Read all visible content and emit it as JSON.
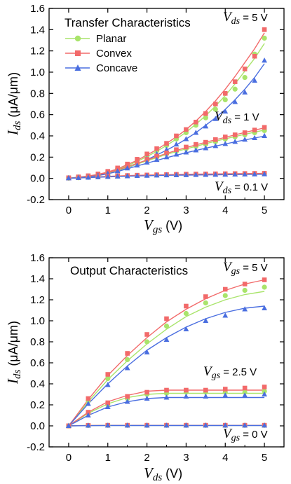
{
  "chart_data": [
    {
      "type": "scatter",
      "title": "Transfer Characteristics",
      "xlabel_main": "V",
      "xlabel_sub": "gs",
      "xlabel_unit": " (V)",
      "ylabel_main": "I",
      "ylabel_sub": "ds",
      "ylabel_unit": " (μA/μm)",
      "xlim": [
        -0.5,
        5.5
      ],
      "ylim": [
        -0.2,
        1.6
      ],
      "xticks": [
        0,
        1,
        2,
        3,
        4,
        5
      ],
      "yticks": [
        -0.2,
        0.0,
        0.2,
        0.4,
        0.6,
        0.8,
        1.0,
        1.2,
        1.4,
        1.6
      ],
      "legend": {
        "position": "top-left",
        "entries": [
          "Planar",
          "Convex",
          "Concave"
        ]
      },
      "annotations": [
        {
          "main": "V",
          "sub": "ds",
          "rest": " = 5 V"
        },
        {
          "main": "V",
          "sub": "ds",
          "rest": " = 1 V"
        },
        {
          "main": "V",
          "sub": "ds",
          "rest": " = 0.1 V"
        }
      ],
      "x": [
        0,
        0.25,
        0.5,
        0.75,
        1.0,
        1.25,
        1.5,
        1.75,
        2.0,
        2.25,
        2.5,
        2.75,
        3.0,
        3.25,
        3.5,
        3.75,
        4.0,
        4.25,
        4.5,
        4.75,
        5.0
      ],
      "series": [
        {
          "name": "Planar",
          "group": "Vds = 5 V",
          "color": "#a9e46b",
          "marker": "circle",
          "points": [
            0.005,
            0.012,
            0.022,
            0.038,
            0.06,
            0.09,
            0.125,
            0.165,
            0.21,
            0.26,
            0.31,
            0.37,
            0.43,
            0.5,
            0.57,
            0.65,
            0.74,
            0.84,
            0.95,
            1.17,
            1.32
          ],
          "fit": [
            0.002,
            0.01,
            0.02,
            0.035,
            0.055,
            0.085,
            0.12,
            0.16,
            0.205,
            0.255,
            0.31,
            0.37,
            0.435,
            0.51,
            0.59,
            0.68,
            0.78,
            0.89,
            1.01,
            1.13,
            1.27
          ]
        },
        {
          "name": "Convex",
          "group": "Vds = 5 V",
          "color": "#f26a6a",
          "marker": "square",
          "points": [
            0.006,
            0.014,
            0.025,
            0.042,
            0.066,
            0.098,
            0.135,
            0.18,
            0.23,
            0.28,
            0.33,
            0.4,
            0.46,
            0.53,
            0.61,
            0.7,
            0.8,
            0.91,
            1.03,
            1.15,
            1.4
          ],
          "fit": [
            0.002,
            0.011,
            0.022,
            0.038,
            0.06,
            0.09,
            0.13,
            0.17,
            0.22,
            0.27,
            0.33,
            0.39,
            0.46,
            0.54,
            0.63,
            0.73,
            0.84,
            0.96,
            1.09,
            1.22,
            1.37
          ]
        },
        {
          "name": "Concave",
          "group": "Vds = 5 V",
          "color": "#4a6ee0",
          "marker": "triangle",
          "points": [
            0.004,
            0.01,
            0.019,
            0.032,
            0.052,
            0.078,
            0.11,
            0.145,
            0.185,
            0.23,
            0.27,
            0.32,
            0.37,
            0.43,
            0.49,
            0.56,
            0.63,
            0.72,
            0.81,
            0.92,
            1.11
          ],
          "fit": [
            0.002,
            0.009,
            0.018,
            0.031,
            0.048,
            0.072,
            0.1,
            0.135,
            0.175,
            0.22,
            0.265,
            0.315,
            0.37,
            0.43,
            0.5,
            0.57,
            0.65,
            0.74,
            0.84,
            0.95,
            1.08
          ]
        },
        {
          "name": "Planar",
          "group": "Vds = 1 V",
          "color": "#a9e46b",
          "marker": "circle",
          "points": [
            0.004,
            0.01,
            0.018,
            0.032,
            0.052,
            0.08,
            0.11,
            0.14,
            0.17,
            0.2,
            0.23,
            0.255,
            0.28,
            0.3,
            0.32,
            0.345,
            0.37,
            0.39,
            0.41,
            0.43,
            0.45
          ],
          "fit": [
            0.002,
            0.009,
            0.018,
            0.03,
            0.05,
            0.075,
            0.105,
            0.135,
            0.165,
            0.195,
            0.225,
            0.252,
            0.278,
            0.302,
            0.326,
            0.35,
            0.372,
            0.394,
            0.415,
            0.435,
            0.455
          ]
        },
        {
          "name": "Convex",
          "group": "Vds = 1 V",
          "color": "#f26a6a",
          "marker": "square",
          "points": [
            0.005,
            0.011,
            0.02,
            0.034,
            0.056,
            0.085,
            0.115,
            0.15,
            0.18,
            0.21,
            0.24,
            0.27,
            0.295,
            0.32,
            0.34,
            0.365,
            0.39,
            0.41,
            0.43,
            0.455,
            0.48
          ],
          "fit": [
            0.002,
            0.01,
            0.019,
            0.032,
            0.053,
            0.08,
            0.11,
            0.142,
            0.173,
            0.204,
            0.235,
            0.263,
            0.29,
            0.315,
            0.34,
            0.364,
            0.387,
            0.41,
            0.432,
            0.454,
            0.475
          ]
        },
        {
          "name": "Concave",
          "group": "Vds = 1 V",
          "color": "#4a6ee0",
          "marker": "triangle",
          "points": [
            0.003,
            0.008,
            0.015,
            0.027,
            0.045,
            0.068,
            0.095,
            0.122,
            0.15,
            0.175,
            0.2,
            0.225,
            0.245,
            0.265,
            0.285,
            0.305,
            0.325,
            0.345,
            0.365,
            0.38,
            0.4
          ],
          "fit": [
            0.002,
            0.008,
            0.015,
            0.026,
            0.043,
            0.065,
            0.09,
            0.117,
            0.143,
            0.169,
            0.194,
            0.218,
            0.241,
            0.263,
            0.284,
            0.304,
            0.324,
            0.343,
            0.362,
            0.38,
            0.398
          ]
        },
        {
          "name": "Planar",
          "group": "Vds = 0.1 V",
          "color": "#a9e46b",
          "marker": "circle",
          "points": [
            0.002,
            0.006,
            0.01,
            0.014,
            0.018,
            0.022,
            0.025,
            0.028,
            0.03,
            0.032,
            0.034,
            0.035,
            0.036,
            0.038,
            0.039,
            0.04,
            0.041,
            0.042,
            0.043,
            0.044,
            0.045
          ],
          "fit": [
            0.001,
            0.005,
            0.009,
            0.013,
            0.017,
            0.021,
            0.024,
            0.027,
            0.029,
            0.031,
            0.033,
            0.034,
            0.036,
            0.037,
            0.038,
            0.039,
            0.04,
            0.041,
            0.042,
            0.043,
            0.044
          ]
        },
        {
          "name": "Convex",
          "group": "Vds = 0.1 V",
          "color": "#f26a6a",
          "marker": "square",
          "points": [
            0.003,
            0.007,
            0.011,
            0.015,
            0.02,
            0.024,
            0.027,
            0.03,
            0.032,
            0.034,
            0.036,
            0.038,
            0.04,
            0.041,
            0.042,
            0.043,
            0.044,
            0.045,
            0.046,
            0.047,
            0.048
          ],
          "fit": [
            0.001,
            0.006,
            0.01,
            0.014,
            0.019,
            0.023,
            0.026,
            0.029,
            0.031,
            0.033,
            0.035,
            0.037,
            0.039,
            0.04,
            0.041,
            0.042,
            0.043,
            0.044,
            0.045,
            0.046,
            0.047
          ]
        },
        {
          "name": "Concave",
          "group": "Vds = 0.1 V",
          "color": "#4a6ee0",
          "marker": "triangle",
          "points": [
            0.002,
            0.005,
            0.008,
            0.012,
            0.015,
            0.018,
            0.021,
            0.024,
            0.026,
            0.028,
            0.03,
            0.031,
            0.032,
            0.033,
            0.034,
            0.035,
            0.036,
            0.037,
            0.038,
            0.039,
            0.04
          ],
          "fit": [
            0.001,
            0.004,
            0.008,
            0.011,
            0.014,
            0.017,
            0.02,
            0.023,
            0.025,
            0.027,
            0.029,
            0.03,
            0.031,
            0.032,
            0.033,
            0.034,
            0.035,
            0.036,
            0.037,
            0.038,
            0.039
          ]
        }
      ]
    },
    {
      "type": "scatter",
      "title": "Output Characteristics",
      "xlabel_main": "V",
      "xlabel_sub": "ds",
      "xlabel_unit": " (V)",
      "ylabel_main": "I",
      "ylabel_sub": "ds",
      "ylabel_unit": " (μA/μm)",
      "xlim": [
        -0.5,
        5.5
      ],
      "ylim": [
        -0.2,
        1.6
      ],
      "xticks": [
        0,
        1,
        2,
        3,
        4,
        5
      ],
      "yticks": [
        -0.2,
        0.0,
        0.2,
        0.4,
        0.6,
        0.8,
        1.0,
        1.2,
        1.4,
        1.6
      ],
      "annotations": [
        {
          "main": "V",
          "sub": "gs",
          "rest": " = 5 V"
        },
        {
          "main": "V",
          "sub": "gs",
          "rest": " = 2.5 V"
        },
        {
          "main": "V",
          "sub": "gs",
          "rest": " = 0 V"
        }
      ],
      "x": [
        0,
        0.5,
        1.0,
        1.5,
        2.0,
        2.5,
        3.0,
        3.5,
        4.0,
        4.5,
        5.0
      ],
      "series": [
        {
          "name": "Planar",
          "group": "Vgs = 5 V",
          "color": "#a9e46b",
          "marker": "circle",
          "points": [
            0.0,
            0.24,
            0.45,
            0.63,
            0.8,
            0.95,
            1.07,
            1.17,
            1.24,
            1.29,
            1.32
          ],
          "fit": [
            0.0,
            0.23,
            0.44,
            0.62,
            0.78,
            0.92,
            1.04,
            1.13,
            1.2,
            1.25,
            1.28
          ]
        },
        {
          "name": "Convex",
          "group": "Vgs = 5 V",
          "color": "#f26a6a",
          "marker": "square",
          "points": [
            0.0,
            0.26,
            0.49,
            0.69,
            0.87,
            1.02,
            1.14,
            1.23,
            1.3,
            1.35,
            1.39
          ],
          "fit": [
            0.0,
            0.25,
            0.48,
            0.67,
            0.84,
            0.99,
            1.11,
            1.21,
            1.29,
            1.35,
            1.39
          ]
        },
        {
          "name": "Concave",
          "group": "Vgs = 5 V",
          "color": "#4a6ee0",
          "marker": "triangle",
          "points": [
            0.0,
            0.21,
            0.39,
            0.55,
            0.7,
            0.82,
            0.92,
            1.0,
            1.05,
            1.11,
            1.12
          ],
          "fit": [
            0.0,
            0.21,
            0.4,
            0.57,
            0.72,
            0.84,
            0.94,
            1.02,
            1.08,
            1.12,
            1.14
          ]
        },
        {
          "name": "Planar",
          "group": "Vgs = 2.5 V",
          "color": "#a9e46b",
          "marker": "circle",
          "points": [
            0.0,
            0.12,
            0.2,
            0.26,
            0.3,
            0.31,
            0.32,
            0.32,
            0.32,
            0.32,
            0.33
          ],
          "fit": [
            0.0,
            0.12,
            0.21,
            0.27,
            0.3,
            0.31,
            0.31,
            0.31,
            0.31,
            0.31,
            0.31
          ]
        },
        {
          "name": "Convex",
          "group": "Vgs = 2.5 V",
          "color": "#f26a6a",
          "marker": "square",
          "points": [
            0.0,
            0.13,
            0.22,
            0.28,
            0.32,
            0.34,
            0.34,
            0.34,
            0.35,
            0.36,
            0.37
          ],
          "fit": [
            0.0,
            0.13,
            0.23,
            0.29,
            0.33,
            0.34,
            0.34,
            0.34,
            0.34,
            0.34,
            0.34
          ]
        },
        {
          "name": "Concave",
          "group": "Vgs = 2.5 V",
          "color": "#4a6ee0",
          "marker": "triangle",
          "points": [
            0.0,
            0.1,
            0.18,
            0.23,
            0.26,
            0.27,
            0.28,
            0.28,
            0.29,
            0.29,
            0.3
          ],
          "fit": [
            0.0,
            0.1,
            0.18,
            0.23,
            0.26,
            0.27,
            0.27,
            0.27,
            0.27,
            0.27,
            0.27
          ]
        },
        {
          "name": "Planar",
          "group": "Vgs = 0 V",
          "color": "#a9e46b",
          "marker": "circle",
          "points": [
            0.0,
            0.004,
            0.005,
            0.005,
            0.005,
            0.005,
            0.005,
            0.005,
            0.005,
            0.005,
            0.005
          ],
          "fit": [
            0.0,
            0.003,
            0.004,
            0.004,
            0.004,
            0.004,
            0.004,
            0.004,
            0.004,
            0.004,
            0.004
          ]
        },
        {
          "name": "Convex",
          "group": "Vgs = 0 V",
          "color": "#f26a6a",
          "marker": "square",
          "points": [
            0.0,
            0.005,
            0.006,
            0.006,
            0.006,
            0.006,
            0.006,
            0.006,
            0.006,
            0.006,
            0.006
          ],
          "fit": [
            0.0,
            0.004,
            0.005,
            0.005,
            0.005,
            0.005,
            0.005,
            0.005,
            0.005,
            0.005,
            0.005
          ]
        },
        {
          "name": "Concave",
          "group": "Vgs = 0 V",
          "color": "#4a6ee0",
          "marker": "triangle",
          "points": [
            0.0,
            0.003,
            0.004,
            0.004,
            0.004,
            0.004,
            0.004,
            0.004,
            0.004,
            0.004,
            0.004
          ],
          "fit": [
            0.0,
            0.002,
            0.003,
            0.003,
            0.003,
            0.003,
            0.003,
            0.003,
            0.003,
            0.003,
            0.003
          ]
        }
      ]
    }
  ]
}
